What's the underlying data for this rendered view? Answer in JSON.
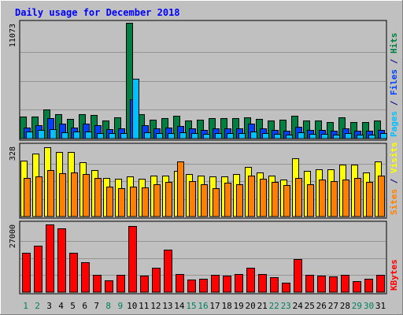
{
  "chart_data": {
    "type": "bar",
    "title": "Daily usage for December 2018",
    "categories": [
      "1",
      "2",
      "3",
      "4",
      "5",
      "6",
      "7",
      "8",
      "9",
      "10",
      "11",
      "12",
      "13",
      "14",
      "15",
      "16",
      "17",
      "18",
      "19",
      "20",
      "21",
      "22",
      "23",
      "24",
      "25",
      "26",
      "27",
      "28",
      "29",
      "30",
      "31"
    ],
    "weekend_days": [
      "1",
      "2",
      "8",
      "9",
      "15",
      "16",
      "22",
      "23",
      "29",
      "30"
    ],
    "panels": [
      {
        "name": "hits-files-pages",
        "ymax_label": "11073",
        "ylim": [
          0,
          11073
        ],
        "right_labels": [
          {
            "text": "Pages",
            "color": "#00c0ff"
          },
          {
            "text": " / ",
            "color": "#000080"
          },
          {
            "text": "Files",
            "color": "#0040ff"
          },
          {
            "text": " / ",
            "color": "#000080"
          },
          {
            "text": "Hits",
            "color": "#008040"
          }
        ],
        "series": [
          {
            "name": "Hits",
            "color": "#008040",
            "values": [
              2100,
              2100,
              2750,
              2300,
              1900,
              2350,
              2250,
              1700,
              2000,
              11073,
              2300,
              1800,
              1950,
              2150,
              1750,
              1800,
              1950,
              1950,
              1950,
              2050,
              1900,
              1750,
              1800,
              2150,
              1700,
              1700,
              1600,
              2000,
              1550,
              1550,
              1750
            ]
          },
          {
            "name": "Files",
            "color": "#0040ff",
            "values": [
              1050,
              1250,
              1950,
              1450,
              1050,
              1450,
              1250,
              900,
              1000,
              3800,
              1300,
              1000,
              1050,
              1200,
              950,
              850,
              1000,
              1000,
              1000,
              1400,
              1000,
              850,
              750,
              1100,
              800,
              800,
              750,
              950,
              750,
              750,
              850
            ]
          },
          {
            "name": "Pages",
            "color": "#00c0ff",
            "values": [
              650,
              800,
              900,
              600,
              650,
              700,
              550,
              500,
              550,
              5700,
              600,
              500,
              550,
              600,
              500,
              450,
              550,
              500,
              500,
              650,
              550,
              450,
              400,
              600,
              450,
              450,
              400,
              500,
              400,
              400,
              500
            ]
          }
        ]
      },
      {
        "name": "visits-sites",
        "ymax_label": "328",
        "ylim": [
          0,
          328
        ],
        "right_labels": [
          {
            "text": "Sites",
            "color": "#ff8000"
          },
          {
            "text": " / ",
            "color": "#000080"
          },
          {
            "text": "Visits",
            "color": "#ffff00"
          }
        ],
        "series": [
          {
            "name": "Visits",
            "color": "#ffff00",
            "values": [
              260,
              290,
              320,
              300,
              300,
              250,
              215,
              180,
              175,
              185,
              175,
              190,
              190,
              210,
              195,
              190,
              185,
              185,
              195,
              230,
              205,
              190,
              170,
              270,
              210,
              220,
              220,
              240,
              240,
              205,
              255
            ]
          },
          {
            "name": "Sites",
            "color": "#ff8000",
            "values": [
              180,
              185,
              215,
              200,
              205,
              195,
              180,
              140,
              130,
              140,
              135,
              150,
              160,
              255,
              165,
              150,
              130,
              155,
              150,
              190,
              175,
              160,
              145,
              180,
              150,
              170,
              165,
              170,
              180,
              160,
              190
            ]
          }
        ]
      },
      {
        "name": "kbytes",
        "ymax_label": "27000",
        "ylim": [
          0,
          27000
        ],
        "right_labels": [
          {
            "text": "KBytes",
            "color": "#ff0000"
          }
        ],
        "series": [
          {
            "name": "KBytes",
            "color": "#ff0000",
            "values": [
              15400,
              18200,
              26800,
              25100,
              15600,
              11900,
              6800,
              4600,
              6800,
              26100,
              6600,
              9500,
              16700,
              7000,
              4900,
              5200,
              6700,
              6600,
              7100,
              9600,
              7100,
              5800,
              3800,
              12900,
              6800,
              6600,
              6300,
              6900,
              4200,
              5300,
              6800
            ]
          }
        ]
      }
    ],
    "grid": true
  }
}
